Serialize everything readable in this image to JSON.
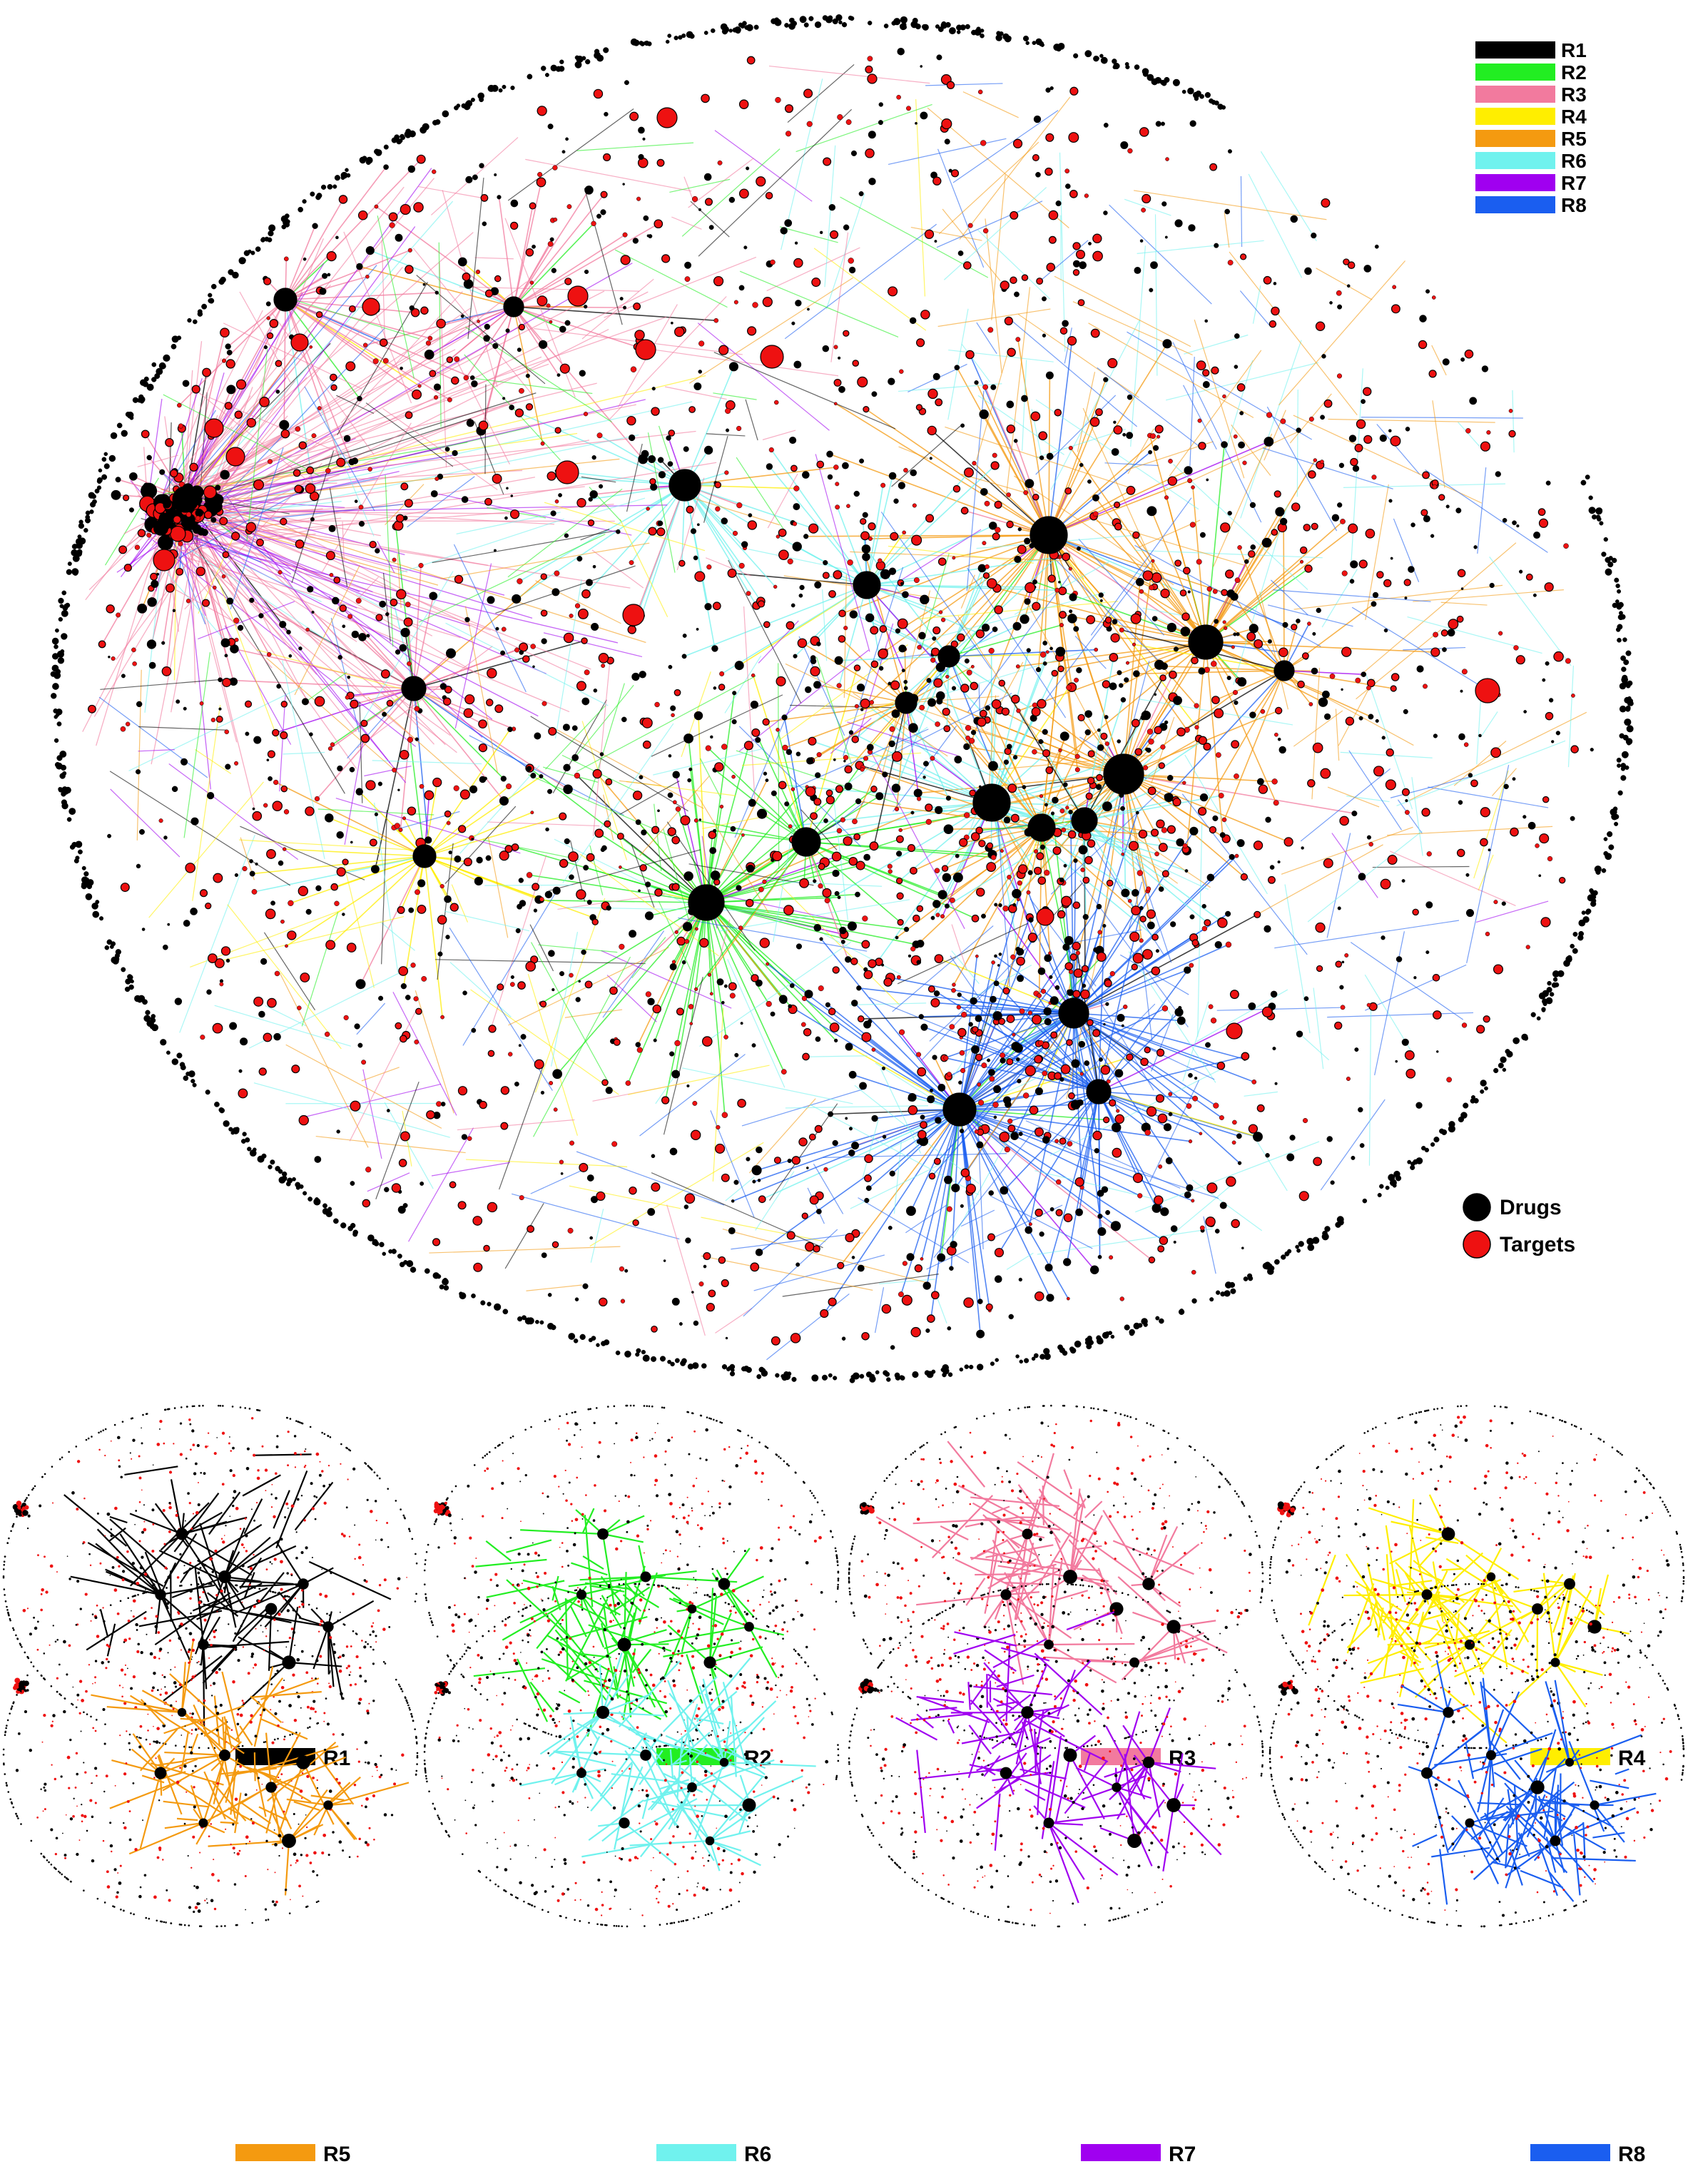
{
  "main_network": {
    "edge_legend": [
      {
        "label": "R1",
        "color": "#000000"
      },
      {
        "label": "R2",
        "color": "#22ee22"
      },
      {
        "label": "R3",
        "color": "#f27a9e"
      },
      {
        "label": "R4",
        "color": "#ffee00"
      },
      {
        "label": "R5",
        "color": "#f49a10"
      },
      {
        "label": "R6",
        "color": "#70f2ee"
      },
      {
        "label": "R7",
        "color": "#a000f0"
      },
      {
        "label": "R8",
        "color": "#1a5ef0"
      }
    ],
    "node_legend": [
      {
        "label": "Drugs",
        "color": "#000000"
      },
      {
        "label": "Targets",
        "color": "#ee1111"
      }
    ]
  },
  "panels": [
    {
      "label": "R1",
      "color": "#000000"
    },
    {
      "label": "R2",
      "color": "#22ee22"
    },
    {
      "label": "R3",
      "color": "#f27a9e"
    },
    {
      "label": "R4",
      "color": "#ffee00"
    },
    {
      "label": "R5",
      "color": "#f49a10"
    },
    {
      "label": "R6",
      "color": "#70f2ee"
    },
    {
      "label": "R7",
      "color": "#a000f0"
    },
    {
      "label": "R8",
      "color": "#1a5ef0"
    }
  ]
}
